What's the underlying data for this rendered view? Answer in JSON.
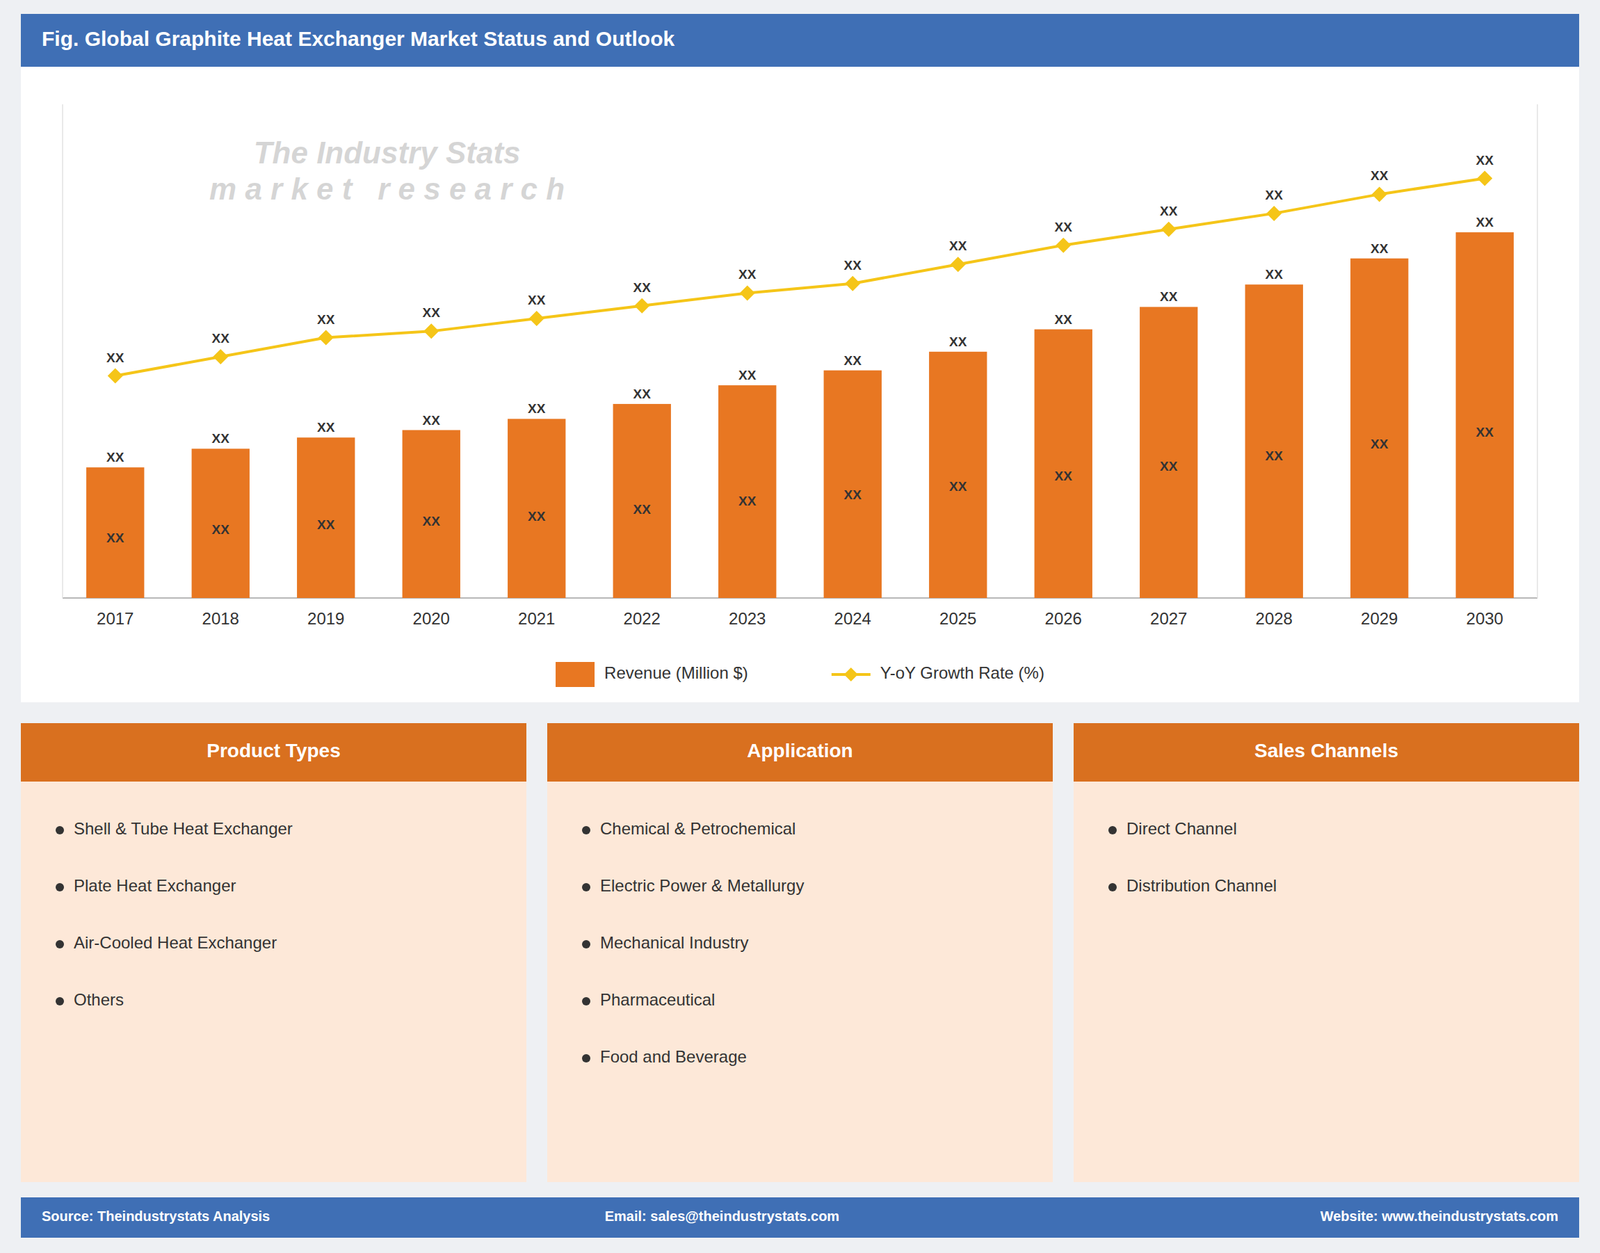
{
  "chart_data": {
    "type": "bar",
    "title": "Fig. Global Graphite Heat Exchanger Market Status and Outlook",
    "categories": [
      "2017",
      "2018",
      "2019",
      "2020",
      "2021",
      "2022",
      "2023",
      "2024",
      "2025",
      "2026",
      "2027",
      "2028",
      "2029",
      "2030"
    ],
    "series": [
      {
        "name": "Revenue (Million $)",
        "type": "bar",
        "color": "#E87722",
        "values": [
          3.5,
          4.0,
          4.3,
          4.5,
          4.8,
          5.2,
          5.7,
          6.1,
          6.6,
          7.2,
          7.8,
          8.4,
          9.1,
          9.8
        ],
        "value_labels": [
          "XX",
          "XX",
          "XX",
          "XX",
          "XX",
          "XX",
          "XX",
          "XX",
          "XX",
          "XX",
          "XX",
          "XX",
          "XX",
          "XX"
        ]
      },
      {
        "name": "Y-oY Growth Rate (%)",
        "type": "line",
        "color": "#F5C518",
        "marker": "diamond",
        "axis": "y2",
        "values": [
          4.8,
          5.1,
          5.4,
          5.5,
          5.7,
          5.9,
          6.1,
          6.25,
          6.55,
          6.85,
          7.1,
          7.35,
          7.65,
          7.9
        ],
        "value_labels": [
          "XX",
          "XX",
          "XX",
          "XX",
          "XX",
          "XX",
          "XX",
          "XX",
          "XX",
          "XX",
          "XX",
          "XX",
          "XX",
          "XX"
        ]
      }
    ],
    "ylim": [
      0,
      13.23
    ],
    "yticks": [],
    "y2lim": [
      1.3125,
      9.0625
    ],
    "y2ticks": [],
    "grid": false,
    "legend": "bottom",
    "data_labels": true,
    "tick_labels": "x",
    "annotations": [
      "The Industry Stats\nm a r k e t   r e s e a r c h",
      "Source: Theindustrystats Analysis",
      "Email: sales@theindustrystats.com",
      "Website: www.theindustrystats.com"
    ],
    "panels": [
      {
        "title": "Product Types",
        "items": [
          "Shell & Tube Heat Exchanger",
          "Plate Heat Exchanger",
          "Air-Cooled Heat Exchanger",
          "Others"
        ]
      },
      {
        "title": "Application",
        "items": [
          "Chemical & Petrochemical",
          "Electric Power & Metallurgy",
          "Mechanical Industry",
          "Pharmaceutical",
          "Food and Beverage"
        ]
      },
      {
        "title": "Sales Channels",
        "items": [
          "Direct Channel",
          "Distribution Channel"
        ]
      }
    ]
  }
}
